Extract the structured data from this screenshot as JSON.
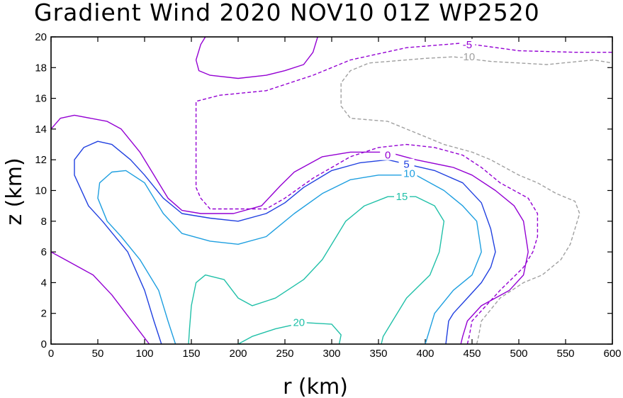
{
  "chart_data": {
    "type": "contour",
    "title": "Gradient Wind 2020 NOV10 01Z   WP2520",
    "xlabel": "r (km)",
    "ylabel": "z (km)",
    "xlim": [
      0,
      600
    ],
    "ylim": [
      0,
      20
    ],
    "xticks": [
      0,
      50,
      100,
      150,
      200,
      250,
      300,
      350,
      400,
      450,
      500,
      550,
      600
    ],
    "yticks": [
      0,
      2,
      4,
      6,
      8,
      10,
      12,
      14,
      16,
      18,
      20
    ],
    "contours": [
      {
        "name": "contour-minus-10",
        "level": -10,
        "label": "-10",
        "color": "#a0a0a0",
        "dashed": true,
        "label_at": [
          445,
          18.7
        ],
        "lines": [
          [
            [
              455,
              0
            ],
            [
              457,
              0.5
            ],
            [
              460,
              1.5
            ],
            [
              480,
              3
            ],
            [
              505,
              4
            ],
            [
              525,
              4.5
            ],
            [
              545,
              5.5
            ],
            [
              555,
              6.5
            ],
            [
              560,
              7.5
            ],
            [
              565,
              8.5
            ],
            [
              560,
              9.3
            ],
            [
              540,
              9.8
            ],
            [
              520,
              10.5
            ],
            [
              500,
              11
            ],
            [
              470,
              12
            ],
            [
              450,
              12.5
            ],
            [
              420,
              13
            ],
            [
              400,
              13.5
            ],
            [
              380,
              14
            ],
            [
              360,
              14.5
            ],
            [
              320,
              14.7
            ],
            [
              310,
              15.5
            ],
            [
              310,
              17
            ],
            [
              320,
              17.8
            ],
            [
              340,
              18.3
            ],
            [
              400,
              18.6
            ],
            [
              430,
              18.7
            ],
            [
              470,
              18.4
            ],
            [
              530,
              18.2
            ],
            [
              580,
              18.5
            ],
            [
              600,
              18.3
            ]
          ]
        ]
      },
      {
        "name": "contour-minus-5",
        "level": -5,
        "label": "-5",
        "color": "#9400d3",
        "dashed": true,
        "label_at": [
          445,
          19.5
        ],
        "lines": [
          [
            [
              445,
              0
            ],
            [
              447,
              0.5
            ],
            [
              450,
              1.5
            ],
            [
              480,
              3.5
            ],
            [
              505,
              5
            ],
            [
              515,
              6
            ],
            [
              520,
              7
            ],
            [
              520,
              8.5
            ],
            [
              510,
              9.5
            ],
            [
              480,
              10.5
            ],
            [
              460,
              11.5
            ],
            [
              440,
              12.3
            ],
            [
              410,
              12.8
            ],
            [
              380,
              13
            ],
            [
              350,
              12.8
            ],
            [
              320,
              12.2
            ],
            [
              280,
              10.8
            ],
            [
              250,
              9.5
            ],
            [
              230,
              8.8
            ],
            [
              170,
              8.8
            ],
            [
              160,
              9.5
            ],
            [
              155,
              10.2
            ],
            [
              155,
              15.8
            ],
            [
              180,
              16.2
            ],
            [
              230,
              16.5
            ],
            [
              280,
              17.5
            ],
            [
              320,
              18.5
            ],
            [
              380,
              19.3
            ],
            [
              440,
              19.6
            ],
            [
              500,
              19.1
            ],
            [
              560,
              19
            ],
            [
              600,
              19
            ]
          ]
        ]
      },
      {
        "name": "contour-0",
        "level": 0,
        "label": "0",
        "color": "#9400d3",
        "dashed": false,
        "label_at": [
          360,
          12.3
        ],
        "lines": [
          [
            [
              0,
              14
            ],
            [
              10,
              14.7
            ],
            [
              25,
              14.9
            ],
            [
              60,
              14.5
            ],
            [
              75,
              14
            ],
            [
              95,
              12.5
            ],
            [
              110,
              11
            ],
            [
              125,
              9.5
            ],
            [
              140,
              8.7
            ],
            [
              160,
              8.5
            ],
            [
              195,
              8.5
            ],
            [
              225,
              9
            ],
            [
              245,
              10.3
            ],
            [
              260,
              11.2
            ],
            [
              290,
              12.2
            ],
            [
              320,
              12.5
            ],
            [
              360,
              12.5
            ],
            [
              390,
              12
            ],
            [
              430,
              11.5
            ],
            [
              450,
              11
            ],
            [
              475,
              10
            ],
            [
              495,
              9
            ],
            [
              505,
              8
            ],
            [
              510,
              6
            ],
            [
              505,
              4.5
            ],
            [
              490,
              3.5
            ],
            [
              460,
              2.5
            ],
            [
              445,
              1.5
            ],
            [
              440,
              0.5
            ],
            [
              438,
              0
            ]
          ],
          [
            [
              0,
              6
            ],
            [
              15,
              5.5
            ],
            [
              30,
              5
            ],
            [
              45,
              4.5
            ],
            [
              65,
              3.2
            ],
            [
              80,
              2
            ],
            [
              95,
              0.8
            ],
            [
              105,
              0
            ]
          ],
          [
            [
              165,
              20
            ],
            [
              160,
              19.5
            ],
            [
              155,
              18.5
            ],
            [
              158,
              17.8
            ],
            [
              170,
              17.5
            ],
            [
              200,
              17.3
            ],
            [
              230,
              17.5
            ],
            [
              250,
              17.8
            ],
            [
              270,
              18.2
            ],
            [
              280,
              19
            ],
            [
              285,
              20
            ]
          ]
        ]
      },
      {
        "name": "contour-5",
        "level": 5,
        "label": "5",
        "color": "#2040e0",
        "dashed": false,
        "label_at": [
          380,
          11.7
        ],
        "lines": [
          [
            [
              118,
              0
            ],
            [
              110,
              1.5
            ],
            [
              100,
              3.5
            ],
            [
              82,
              6
            ],
            [
              55,
              8
            ],
            [
              40,
              9
            ],
            [
              25,
              11
            ],
            [
              25,
              12
            ],
            [
              35,
              12.8
            ],
            [
              50,
              13.2
            ],
            [
              65,
              13
            ],
            [
              85,
              12
            ],
            [
              100,
              11
            ],
            [
              120,
              9.5
            ],
            [
              140,
              8.5
            ],
            [
              170,
              8.2
            ],
            [
              200,
              8
            ],
            [
              230,
              8.5
            ],
            [
              250,
              9.2
            ],
            [
              270,
              10.2
            ],
            [
              300,
              11.3
            ],
            [
              330,
              11.8
            ],
            [
              360,
              12
            ],
            [
              410,
              11.3
            ],
            [
              440,
              10.5
            ],
            [
              460,
              9.2
            ],
            [
              470,
              7.5
            ],
            [
              475,
              6
            ],
            [
              470,
              5
            ],
            [
              460,
              4
            ],
            [
              445,
              3
            ],
            [
              430,
              2
            ],
            [
              425,
              1.5
            ],
            [
              422,
              0
            ]
          ]
        ]
      },
      {
        "name": "contour-10",
        "level": 10,
        "label": "10",
        "color": "#1e9fe0",
        "dashed": false,
        "label_at": [
          383,
          11.1
        ],
        "lines": [
          [
            [
              133,
              0
            ],
            [
              125,
              1.5
            ],
            [
              115,
              3.5
            ],
            [
              95,
              5.5
            ],
            [
              75,
              7
            ],
            [
              60,
              8
            ],
            [
              50,
              9.5
            ],
            [
              52,
              10.5
            ],
            [
              65,
              11.2
            ],
            [
              80,
              11.3
            ],
            [
              100,
              10.5
            ],
            [
              120,
              8.5
            ],
            [
              140,
              7.2
            ],
            [
              170,
              6.7
            ],
            [
              200,
              6.5
            ],
            [
              230,
              7
            ],
            [
              260,
              8.5
            ],
            [
              290,
              9.8
            ],
            [
              320,
              10.7
            ],
            [
              350,
              11
            ],
            [
              390,
              11
            ],
            [
              420,
              10
            ],
            [
              440,
              9
            ],
            [
              455,
              8
            ],
            [
              460,
              6
            ],
            [
              450,
              4.5
            ],
            [
              430,
              3.5
            ],
            [
              410,
              2
            ],
            [
              400,
              0
            ]
          ]
        ]
      },
      {
        "name": "contour-15",
        "level": 15,
        "label": "15",
        "color": "#20c0a8",
        "dashed": false,
        "label_at": [
          375,
          9.6
        ],
        "lines": [
          [
            [
              147,
              0
            ],
            [
              148,
              1
            ],
            [
              150,
              2.5
            ],
            [
              155,
              4
            ],
            [
              165,
              4.5
            ],
            [
              185,
              4.2
            ],
            [
              200,
              3
            ],
            [
              215,
              2.5
            ],
            [
              240,
              3
            ],
            [
              270,
              4.2
            ],
            [
              290,
              5.5
            ],
            [
              305,
              7
            ],
            [
              315,
              8
            ],
            [
              335,
              9
            ],
            [
              360,
              9.6
            ],
            [
              390,
              9.6
            ],
            [
              410,
              9
            ],
            [
              420,
              8
            ],
            [
              415,
              6
            ],
            [
              405,
              4.5
            ],
            [
              380,
              3
            ],
            [
              365,
              1.5
            ],
            [
              355,
              0.5
            ],
            [
              353,
              0
            ]
          ]
        ]
      },
      {
        "name": "contour-20",
        "level": 20,
        "label": "20",
        "color": "#20c0a8",
        "dashed": false,
        "label_at": [
          265,
          1.4
        ],
        "lines": [
          [
            [
              200,
              0
            ],
            [
              215,
              0.5
            ],
            [
              240,
              1
            ],
            [
              270,
              1.4
            ],
            [
              300,
              1.3
            ],
            [
              310,
              0.6
            ],
            [
              308,
              0
            ]
          ]
        ]
      }
    ]
  }
}
